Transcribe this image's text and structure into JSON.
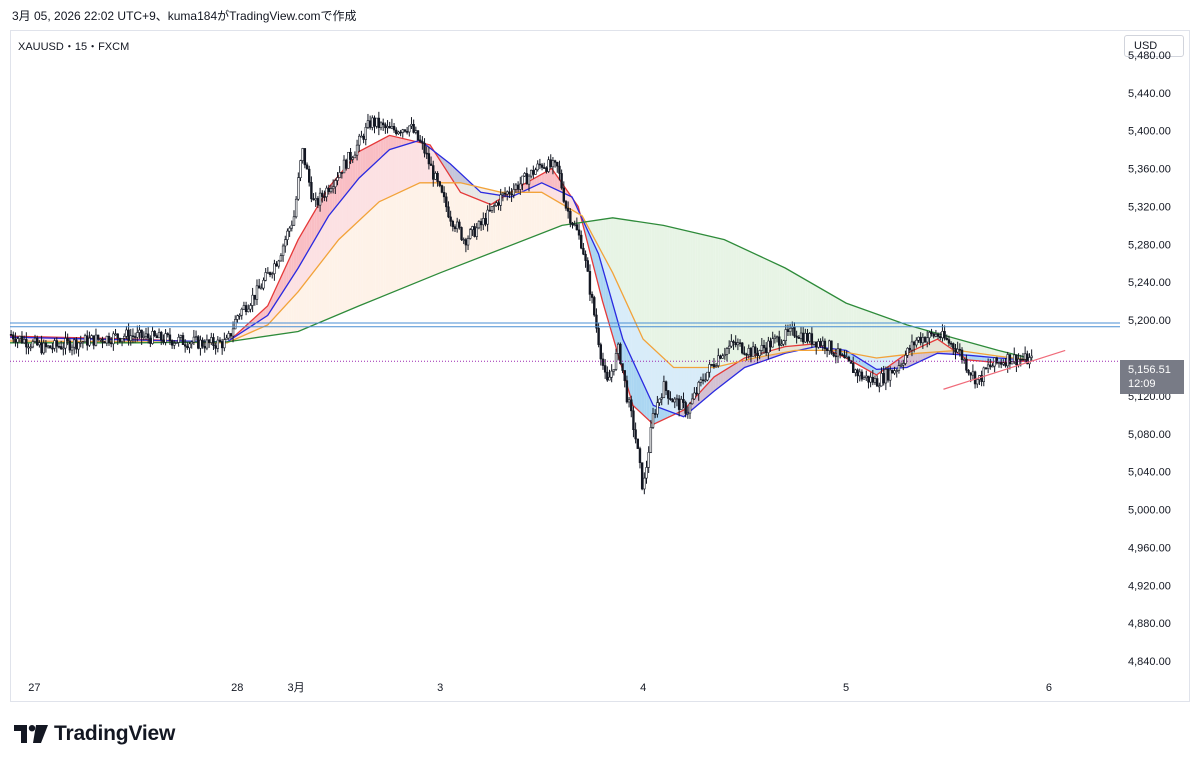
{
  "header": {
    "caption": "3月 05, 2026 22:02 UTC+9、kuma184がTradingView.comで作成"
  },
  "symbol_label": "XAUUSD・15・FXCM",
  "currency_label": "USD",
  "last_price": {
    "value": "5,156.51",
    "countdown": "12:09"
  },
  "branding": {
    "logo_text": "TradingView"
  },
  "colors": {
    "candle": "#131722",
    "ema_red": "#e53939",
    "ema_blue": "#2a2ae0",
    "ema_orange": "#f2a33a",
    "ema_green": "#2e8b3a",
    "fill_red": "#f7a8b0",
    "fill_blue": "#8fc8ee",
    "fill_orange": "#fdeee0",
    "fill_green": "#dff0dc",
    "hline_blue": "#4a8fd4",
    "dotted_line": "#9c27b0",
    "trendline": "#f06b7a"
  },
  "chart_data": {
    "type": "candlestick",
    "instrument": "XAUUSD",
    "timeframe": "15",
    "source": "FXCM",
    "y_ticks": [
      5480,
      5440,
      5400,
      5360,
      5320,
      5280,
      5240,
      5200,
      5120,
      5080,
      5040,
      5000,
      4960,
      4920,
      4880,
      4840
    ],
    "y_tick_labels": [
      "5,480.00",
      "5,440.00",
      "5,400.00",
      "5,360.00",
      "5,320.00",
      "5,280.00",
      "5,240.00",
      "5,200.00",
      "5,120.00",
      "5,080.00",
      "5,040.00",
      "5,000.00",
      "4,960.00",
      "4,920.00",
      "4,880.00",
      "4,840.00"
    ],
    "ylim": [
      4820,
      5500
    ],
    "x_ticks": [
      {
        "t": 0.0,
        "label": "27"
      },
      {
        "t": 1.0,
        "label": "28"
      },
      {
        "t": 1.29,
        "label": "3月"
      },
      {
        "t": 2.0,
        "label": "3"
      },
      {
        "t": 3.0,
        "label": "4"
      },
      {
        "t": 4.0,
        "label": "5"
      },
      {
        "t": 5.0,
        "label": "6"
      }
    ],
    "xlim": [
      -0.12,
      5.35
    ],
    "price_path": [
      [
        -0.12,
        5185
      ],
      [
        0.05,
        5170
      ],
      [
        0.25,
        5178
      ],
      [
        0.45,
        5184
      ],
      [
        0.65,
        5180
      ],
      [
        0.85,
        5175
      ],
      [
        0.95,
        5176
      ],
      [
        1.0,
        5205
      ],
      [
        1.1,
        5230
      ],
      [
        1.2,
        5265
      ],
      [
        1.28,
        5310
      ],
      [
        1.32,
        5380
      ],
      [
        1.38,
        5320
      ],
      [
        1.48,
        5350
      ],
      [
        1.58,
        5380
      ],
      [
        1.66,
        5410
      ],
      [
        1.75,
        5400
      ],
      [
        1.85,
        5405
      ],
      [
        1.92,
        5380
      ],
      [
        2.0,
        5335
      ],
      [
        2.05,
        5310
      ],
      [
        2.12,
        5285
      ],
      [
        2.2,
        5300
      ],
      [
        2.3,
        5330
      ],
      [
        2.4,
        5345
      ],
      [
        2.5,
        5365
      ],
      [
        2.58,
        5360
      ],
      [
        2.62,
        5320
      ],
      [
        2.66,
        5300
      ],
      [
        2.7,
        5280
      ],
      [
        2.78,
        5180
      ],
      [
        2.82,
        5130
      ],
      [
        2.88,
        5170
      ],
      [
        2.92,
        5120
      ],
      [
        2.96,
        5080
      ],
      [
        3.0,
        5020
      ],
      [
        3.05,
        5100
      ],
      [
        3.1,
        5130
      ],
      [
        3.15,
        5115
      ],
      [
        3.22,
        5105
      ],
      [
        3.3,
        5140
      ],
      [
        3.38,
        5165
      ],
      [
        3.45,
        5175
      ],
      [
        3.55,
        5165
      ],
      [
        3.65,
        5178
      ],
      [
        3.75,
        5188
      ],
      [
        3.82,
        5180
      ],
      [
        3.9,
        5175
      ],
      [
        4.0,
        5155
      ],
      [
        4.08,
        5140
      ],
      [
        4.15,
        5135
      ],
      [
        4.25,
        5150
      ],
      [
        4.35,
        5180
      ],
      [
        4.45,
        5185
      ],
      [
        4.55,
        5170
      ],
      [
        4.6,
        5150
      ],
      [
        4.65,
        5135
      ],
      [
        4.7,
        5150
      ],
      [
        4.8,
        5160
      ],
      [
        4.9,
        5158
      ],
      [
        4.92,
        5156.51
      ]
    ],
    "moving_averages": [
      {
        "color": "#e53939",
        "points": [
          [
            -0.12,
            5183
          ],
          [
            0.5,
            5180
          ],
          [
            0.95,
            5176
          ],
          [
            1.15,
            5215
          ],
          [
            1.3,
            5285
          ],
          [
            1.45,
            5340
          ],
          [
            1.6,
            5378
          ],
          [
            1.75,
            5395
          ],
          [
            1.95,
            5385
          ],
          [
            2.1,
            5335
          ],
          [
            2.25,
            5322
          ],
          [
            2.4,
            5342
          ],
          [
            2.55,
            5360
          ],
          [
            2.68,
            5320
          ],
          [
            2.8,
            5220
          ],
          [
            2.95,
            5110
          ],
          [
            3.05,
            5090
          ],
          [
            3.2,
            5105
          ],
          [
            3.35,
            5140
          ],
          [
            3.5,
            5160
          ],
          [
            3.7,
            5172
          ],
          [
            3.85,
            5175
          ],
          [
            4.0,
            5160
          ],
          [
            4.15,
            5142
          ],
          [
            4.3,
            5165
          ],
          [
            4.45,
            5180
          ],
          [
            4.6,
            5158
          ],
          [
            4.75,
            5155
          ],
          [
            4.9,
            5157
          ]
        ]
      },
      {
        "color": "#2a2ae0",
        "points": [
          [
            -0.12,
            5182
          ],
          [
            0.5,
            5179
          ],
          [
            0.95,
            5177
          ],
          [
            1.15,
            5205
          ],
          [
            1.3,
            5255
          ],
          [
            1.45,
            5310
          ],
          [
            1.6,
            5350
          ],
          [
            1.75,
            5380
          ],
          [
            1.9,
            5390
          ],
          [
            2.05,
            5365
          ],
          [
            2.2,
            5335
          ],
          [
            2.35,
            5330
          ],
          [
            2.5,
            5345
          ],
          [
            2.65,
            5330
          ],
          [
            2.78,
            5270
          ],
          [
            2.9,
            5180
          ],
          [
            3.05,
            5110
          ],
          [
            3.2,
            5098
          ],
          [
            3.35,
            5125
          ],
          [
            3.5,
            5150
          ],
          [
            3.7,
            5165
          ],
          [
            3.85,
            5172
          ],
          [
            4.0,
            5168
          ],
          [
            4.15,
            5148
          ],
          [
            4.3,
            5150
          ],
          [
            4.45,
            5165
          ],
          [
            4.6,
            5163
          ],
          [
            4.75,
            5160
          ],
          [
            4.9,
            5158
          ]
        ]
      },
      {
        "color": "#f2a33a",
        "points": [
          [
            -0.12,
            5178
          ],
          [
            0.5,
            5177
          ],
          [
            0.95,
            5176
          ],
          [
            1.15,
            5195
          ],
          [
            1.3,
            5230
          ],
          [
            1.5,
            5285
          ],
          [
            1.7,
            5325
          ],
          [
            1.9,
            5345
          ],
          [
            2.1,
            5345
          ],
          [
            2.3,
            5335
          ],
          [
            2.5,
            5335
          ],
          [
            2.7,
            5310
          ],
          [
            2.85,
            5250
          ],
          [
            3.0,
            5180
          ],
          [
            3.15,
            5150
          ],
          [
            3.35,
            5150
          ],
          [
            3.55,
            5160
          ],
          [
            3.75,
            5168
          ],
          [
            3.95,
            5168
          ],
          [
            4.15,
            5160
          ],
          [
            4.35,
            5165
          ],
          [
            4.55,
            5168
          ],
          [
            4.75,
            5162
          ],
          [
            4.9,
            5158
          ]
        ]
      },
      {
        "color": "#2e8b3a",
        "points": [
          [
            -0.12,
            5176
          ],
          [
            0.5,
            5176
          ],
          [
            0.95,
            5177
          ],
          [
            1.3,
            5188
          ],
          [
            1.6,
            5215
          ],
          [
            2.0,
            5250
          ],
          [
            2.3,
            5275
          ],
          [
            2.6,
            5300
          ],
          [
            2.85,
            5308
          ],
          [
            3.1,
            5300
          ],
          [
            3.4,
            5285
          ],
          [
            3.7,
            5255
          ],
          [
            4.0,
            5218
          ],
          [
            4.3,
            5195
          ],
          [
            4.55,
            5180
          ],
          [
            4.75,
            5168
          ],
          [
            4.9,
            5160
          ]
        ]
      }
    ],
    "horizontal_lines": [
      5197,
      5193
    ],
    "last_price_line": 5156.51,
    "trendline": [
      [
        4.48,
        5127
      ],
      [
        5.08,
        5168
      ]
    ],
    "last_price": 5156.51
  }
}
